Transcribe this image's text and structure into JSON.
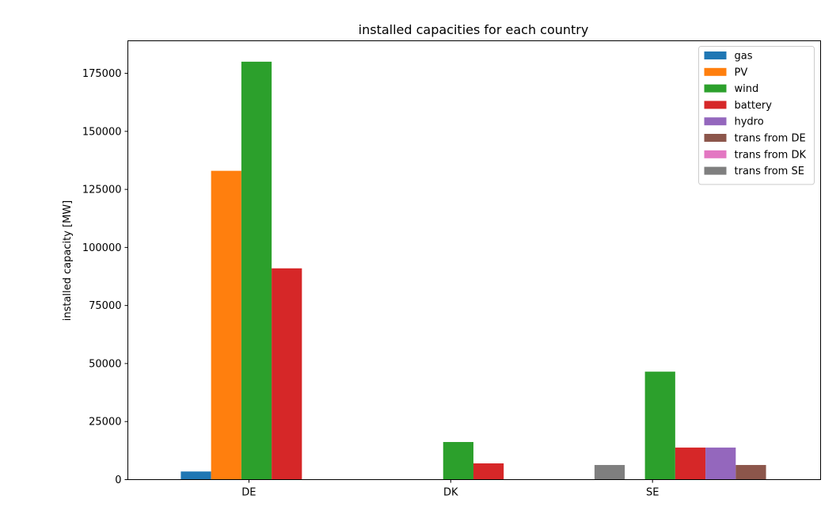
{
  "chart_data": {
    "type": "bar",
    "title": "installed capacities for each country",
    "xlabel": "",
    "ylabel": "installed capacity [MW]",
    "ylim": [
      0,
      189000
    ],
    "yticks": [
      0,
      25000,
      50000,
      75000,
      100000,
      125000,
      150000,
      175000
    ],
    "categories": [
      "DE",
      "DK",
      "SE"
    ],
    "grid": false,
    "legend_position": "top-right",
    "series": [
      {
        "name": "gas",
        "color": "#1f77b4",
        "values": [
          3500,
          0,
          0
        ]
      },
      {
        "name": "PV",
        "color": "#ff7f0e",
        "values": [
          133000,
          0,
          0
        ]
      },
      {
        "name": "wind",
        "color": "#2ca02c",
        "values": [
          180000,
          16200,
          46500
        ]
      },
      {
        "name": "battery",
        "color": "#d62728",
        "values": [
          91000,
          7000,
          13800
        ]
      },
      {
        "name": "hydro",
        "color": "#9467bd",
        "values": [
          0,
          0,
          13800
        ]
      },
      {
        "name": "trans from DE",
        "color": "#8c564b",
        "values": [
          0,
          0,
          6300
        ]
      },
      {
        "name": "trans from DK",
        "color": "#e377c2",
        "values": [
          0,
          0,
          0
        ]
      },
      {
        "name": "trans from SE",
        "color": "#7f7f7f",
        "values": [
          0,
          6300,
          0
        ]
      }
    ]
  }
}
